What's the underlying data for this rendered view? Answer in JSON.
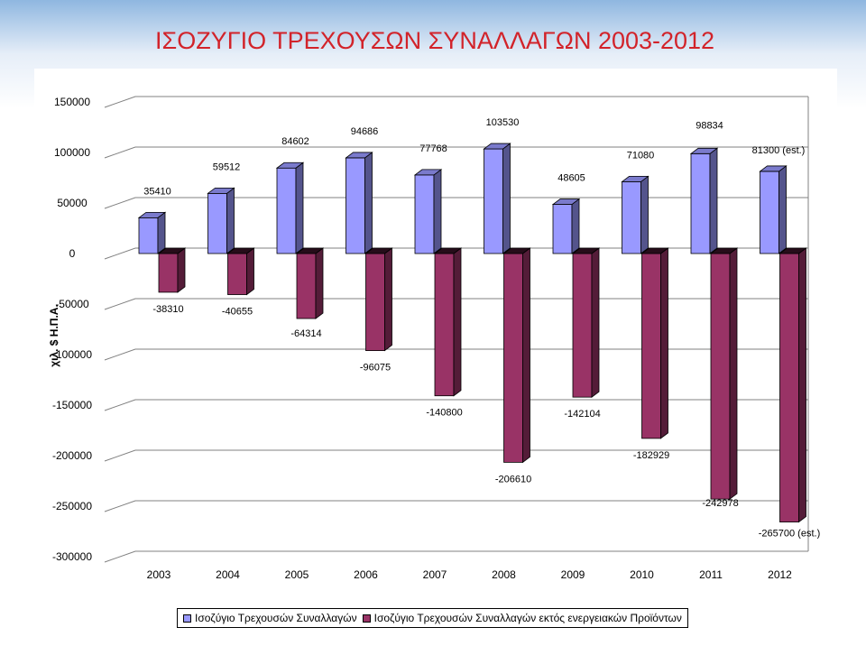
{
  "slide": {
    "title": "ΙΣΟΖΥΓΙΟ ΤΡΕΧΟΥΣΩΝ ΣΥΝΑΛΛΑΓΩΝ 2003-2012"
  },
  "chart_data": {
    "type": "bar",
    "title": "ΙΣΟΖΥΓΙΟ ΤΡΕΧΟΥΣΩΝ ΣΥΝΑΛΛΑΓΩΝ 2003-2012",
    "ylabel": "χιλ. $ Η.Π.Α.",
    "xlabel": "",
    "ylim": [
      -300000,
      150000
    ],
    "y_ticks": [
      "150000",
      "100000",
      "50000",
      "0",
      "-50000",
      "-100000",
      "-150000",
      "-200000",
      "-250000",
      "-300000"
    ],
    "y_tick_values": [
      150000,
      100000,
      50000,
      0,
      -50000,
      -100000,
      -150000,
      -200000,
      -250000,
      -300000
    ],
    "categories": [
      "2003",
      "2004",
      "2005",
      "2006",
      "2007",
      "2008",
      "2009",
      "2010",
      "2011",
      "2012"
    ],
    "grid": true,
    "legend_position": "bottom",
    "series": [
      {
        "name": "Ισοζύγιο Τρεχουσών Συναλλαγών",
        "color": "#9999ff",
        "values": [
          35410,
          59512,
          84602,
          94686,
          77768,
          103530,
          48605,
          71080,
          98834,
          81300
        ],
        "labels": [
          "35410",
          "59512",
          "84602",
          "94686",
          "77768",
          "103530",
          "48605",
          "71080",
          "98834",
          "81300 (est.)"
        ]
      },
      {
        "name": "Ισοζύγιο Τρεχουσών Συναλλαγών εκτός ενεργειακών Προϊόντων",
        "color": "#993366",
        "values": [
          -38310,
          -40655,
          -64314,
          -96075,
          -140800,
          -206610,
          -142104,
          -182929,
          -242978,
          -265700
        ],
        "labels": [
          "-38310",
          "-40655",
          "-64314",
          "-96075",
          "-140800",
          "-206610",
          "-142104",
          "-182929",
          "-242978",
          "-265700 (est.)"
        ]
      }
    ]
  }
}
